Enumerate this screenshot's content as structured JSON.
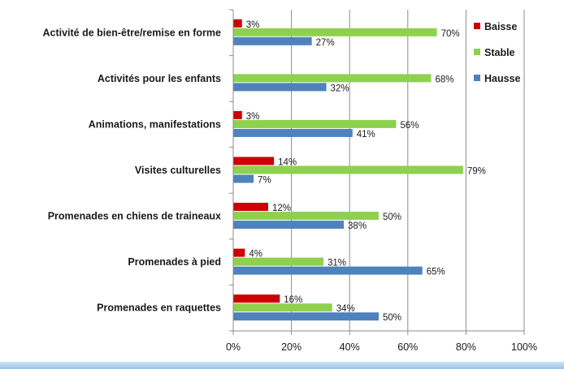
{
  "chart_data": {
    "type": "bar",
    "orientation": "horizontal",
    "categories": [
      "Activité de bien-être/remise en forme",
      "Activités pour les enfants",
      "Animations, manifestations",
      "Visites culturelles",
      "Promenades en chiens de traineaux",
      "Promenades à pied",
      "Promenades en raquettes"
    ],
    "series": [
      {
        "name": "Baisse",
        "color": "#cc0000",
        "values": [
          3,
          null,
          3,
          14,
          12,
          4,
          16
        ]
      },
      {
        "name": "Stable",
        "color": "#8fd14f",
        "values": [
          70,
          68,
          56,
          79,
          50,
          31,
          34
        ]
      },
      {
        "name": "Hausse",
        "color": "#4f81bd",
        "values": [
          27,
          32,
          41,
          7,
          38,
          65,
          50
        ]
      }
    ],
    "value_suffix": "%",
    "xlim": [
      0,
      100
    ],
    "xticks": [
      0,
      20,
      40,
      60,
      80,
      100
    ],
    "xtick_labels": [
      "0%",
      "20%",
      "40%",
      "60%",
      "80%",
      "100%"
    ],
    "grid": "vertical",
    "legend": "top-right"
  }
}
